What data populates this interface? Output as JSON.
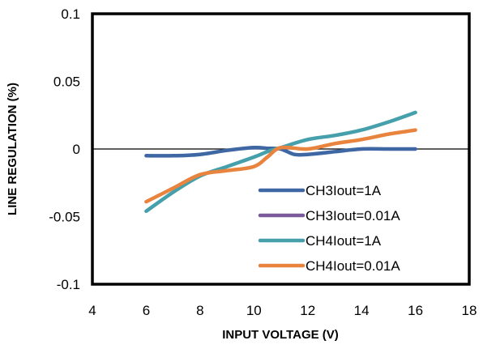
{
  "chart_data": {
    "type": "line",
    "title": "",
    "xlabel": "INPUT VOLTAGE  (V)",
    "ylabel": "LINE REGULATION   (%)",
    "xlim": [
      4,
      18
    ],
    "ylim": [
      -0.1,
      0.1
    ],
    "xticks": [
      4,
      6,
      8,
      10,
      12,
      14,
      16,
      18
    ],
    "yticks": [
      -0.1,
      -0.05,
      0,
      0.05,
      0.1
    ],
    "xtick_labels": [
      "4",
      "6",
      "8",
      "10",
      "12",
      "14",
      "16",
      "18"
    ],
    "ytick_labels": [
      "-0.1",
      "-0.05",
      "0",
      "0.05",
      "0.1"
    ],
    "zero_line": true,
    "grid": false,
    "legend_position": "bottom-right",
    "series": [
      {
        "name": "CH3Iout=1A",
        "color": "#3E67A4",
        "points": [
          [
            6,
            -0.005
          ],
          [
            7,
            -0.005
          ],
          [
            8,
            -0.004
          ],
          [
            9,
            -0.001
          ],
          [
            10,
            0.001
          ],
          [
            10.5,
            0.0005
          ],
          [
            11,
            0.0
          ],
          [
            11.5,
            -0.004
          ],
          [
            12,
            -0.004
          ],
          [
            13,
            -0.002
          ],
          [
            14,
            0.0
          ],
          [
            15,
            0.0
          ],
          [
            16,
            0.0
          ]
        ]
      },
      {
        "name": "CH3Iout=0.01A",
        "color": "#7B5A9C",
        "points": []
      },
      {
        "name": "CH4Iout=1A",
        "color": "#46A0AC",
        "points": [
          [
            6,
            -0.046
          ],
          [
            7,
            -0.032
          ],
          [
            8,
            -0.02
          ],
          [
            9,
            -0.013
          ],
          [
            10,
            -0.006
          ],
          [
            10.5,
            -0.002
          ],
          [
            11,
            0.001
          ],
          [
            12,
            0.007
          ],
          [
            13,
            0.01
          ],
          [
            14,
            0.014
          ],
          [
            15,
            0.02
          ],
          [
            16,
            0.027
          ]
        ]
      },
      {
        "name": "CH4Iout=0.01A",
        "color": "#E8843E",
        "points": [
          [
            6,
            -0.039
          ],
          [
            7,
            -0.029
          ],
          [
            8,
            -0.019
          ],
          [
            9,
            -0.016
          ],
          [
            10,
            -0.013
          ],
          [
            10.5,
            -0.006
          ],
          [
            11,
            0.001
          ],
          [
            12,
            0.0
          ],
          [
            13,
            0.004
          ],
          [
            14,
            0.007
          ],
          [
            15,
            0.011
          ],
          [
            16,
            0.014
          ]
        ]
      }
    ]
  }
}
